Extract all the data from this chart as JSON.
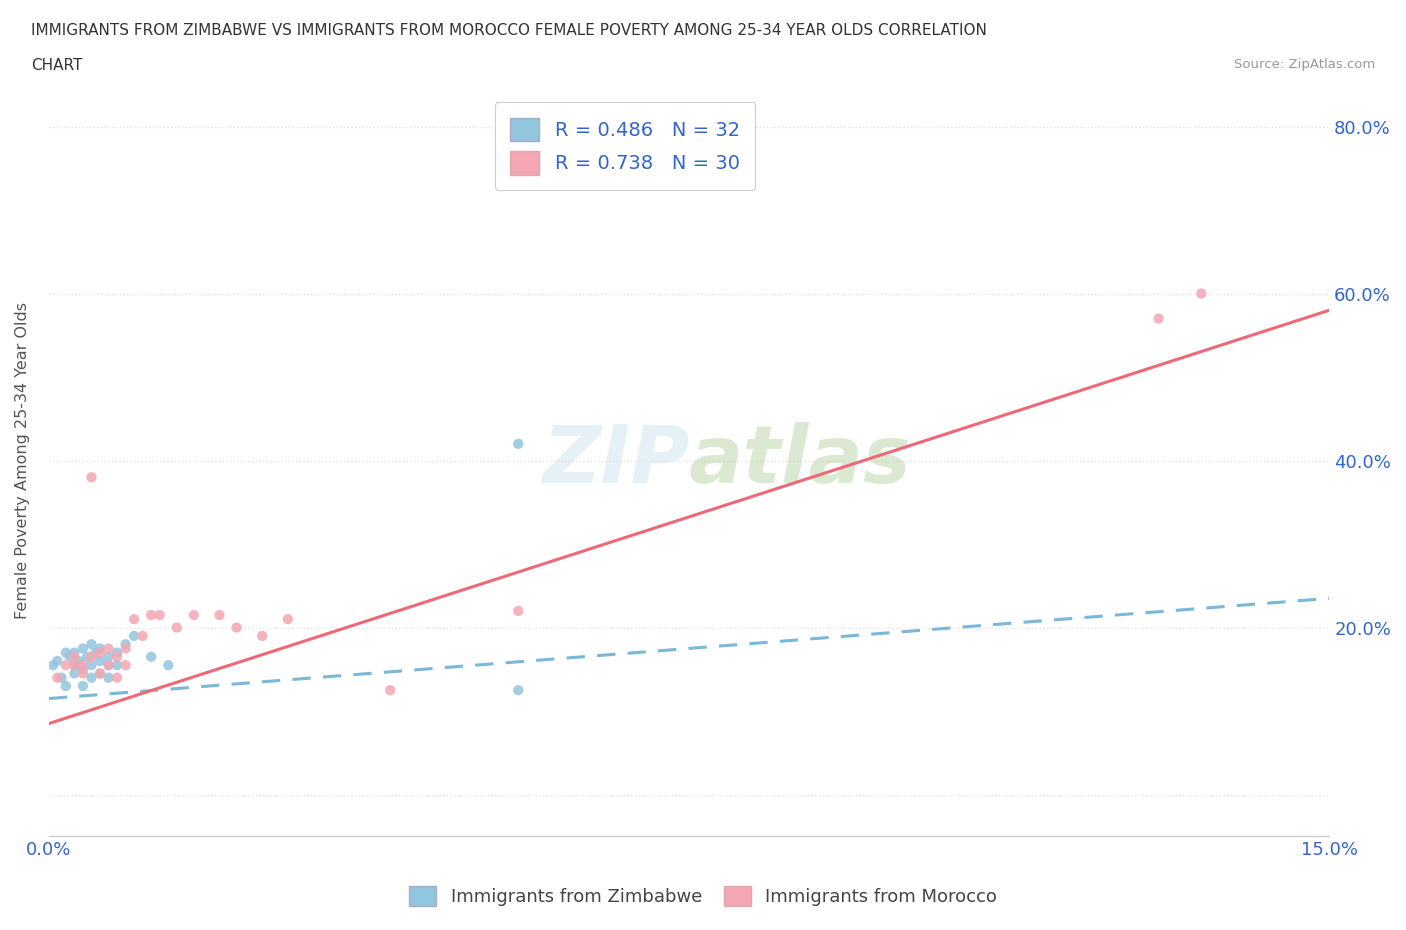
{
  "title_line1": "IMMIGRANTS FROM ZIMBABWE VS IMMIGRANTS FROM MOROCCO FEMALE POVERTY AMONG 25-34 YEAR OLDS CORRELATION",
  "title_line2": "CHART",
  "source": "Source: ZipAtlas.com",
  "ylabel": "Female Poverty Among 25-34 Year Olds",
  "xlim": [
    0.0,
    0.15
  ],
  "ylim": [
    -0.05,
    0.85
  ],
  "x_ticks": [
    0.0,
    0.03,
    0.06,
    0.09,
    0.12,
    0.15
  ],
  "y_ticks": [
    0.0,
    0.2,
    0.4,
    0.6,
    0.8
  ],
  "y_tick_labels": [
    "",
    "20.0%",
    "40.0%",
    "60.0%",
    "80.0%"
  ],
  "watermark": "ZIPatlas",
  "color_zimbabwe": "#92c5de",
  "color_morocco": "#f4a6b2",
  "color_line_zimbabwe": "#7ab8d9",
  "color_line_morocco": "#f06878",
  "color_text_blue": "#3366cc",
  "background_color": "#ffffff",
  "grid_color": "#e0e0e0",
  "scatter_zimbabwe_x": [
    0.0005,
    0.001,
    0.0015,
    0.002,
    0.002,
    0.0025,
    0.003,
    0.003,
    0.003,
    0.0035,
    0.004,
    0.004,
    0.004,
    0.0045,
    0.005,
    0.005,
    0.005,
    0.0055,
    0.006,
    0.006,
    0.006,
    0.007,
    0.007,
    0.007,
    0.008,
    0.008,
    0.009,
    0.01,
    0.012,
    0.014,
    0.055,
    0.055
  ],
  "scatter_zimbabwe_y": [
    0.155,
    0.16,
    0.14,
    0.17,
    0.13,
    0.165,
    0.155,
    0.17,
    0.145,
    0.16,
    0.15,
    0.175,
    0.13,
    0.165,
    0.155,
    0.14,
    0.18,
    0.17,
    0.16,
    0.145,
    0.175,
    0.155,
    0.165,
    0.14,
    0.17,
    0.155,
    0.18,
    0.19,
    0.165,
    0.155,
    0.125,
    0.42
  ],
  "scatter_morocco_x": [
    0.001,
    0.002,
    0.003,
    0.003,
    0.004,
    0.004,
    0.005,
    0.005,
    0.006,
    0.006,
    0.007,
    0.007,
    0.008,
    0.008,
    0.009,
    0.009,
    0.01,
    0.011,
    0.012,
    0.013,
    0.015,
    0.017,
    0.02,
    0.022,
    0.025,
    0.028,
    0.04,
    0.055,
    0.13,
    0.135
  ],
  "scatter_morocco_y": [
    0.14,
    0.155,
    0.155,
    0.165,
    0.145,
    0.155,
    0.165,
    0.38,
    0.17,
    0.145,
    0.175,
    0.155,
    0.165,
    0.14,
    0.155,
    0.175,
    0.21,
    0.19,
    0.215,
    0.215,
    0.2,
    0.215,
    0.215,
    0.2,
    0.19,
    0.21,
    0.125,
    0.22,
    0.57,
    0.6
  ],
  "zim_line_x": [
    0.0,
    0.15
  ],
  "zim_line_y": [
    0.115,
    0.235
  ],
  "mor_line_x": [
    0.0,
    0.15
  ],
  "mor_line_y": [
    0.085,
    0.58
  ]
}
